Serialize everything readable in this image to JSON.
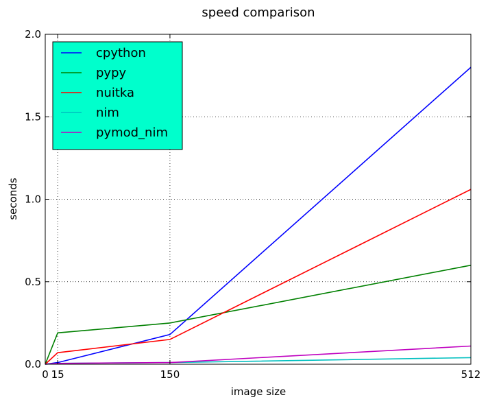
{
  "chart_data": {
    "type": "line",
    "title": "speed comparison",
    "xlabel": "image size",
    "ylabel": "seconds",
    "xlim": [
      0,
      512
    ],
    "ylim": [
      0.0,
      2.0
    ],
    "x": [
      0,
      15,
      150,
      512
    ],
    "xticks": [
      0,
      15,
      150,
      512
    ],
    "xtick_labels": [
      "0",
      "15",
      "150",
      "512"
    ],
    "yticks": [
      0.0,
      0.5,
      1.0,
      1.5,
      2.0
    ],
    "ytick_labels": [
      "0.0",
      "0.5",
      "1.0",
      "1.5",
      "2.0"
    ],
    "grid": true,
    "legend_position": "top-left",
    "legend_background": "#00ffcc",
    "series": [
      {
        "name": "cpython",
        "color": "#0000ff",
        "values": [
          0.0,
          0.01,
          0.18,
          1.8
        ]
      },
      {
        "name": "pypy",
        "color": "#008000",
        "values": [
          0.0,
          0.19,
          0.25,
          0.6
        ]
      },
      {
        "name": "nuitka",
        "color": "#ff0000",
        "values": [
          0.0,
          0.07,
          0.15,
          1.06
        ]
      },
      {
        "name": "nim",
        "color": "#00bfbf",
        "values": [
          0.0,
          0.005,
          0.01,
          0.04
        ]
      },
      {
        "name": "pymod_nim",
        "color": "#bf00bf",
        "values": [
          0.0,
          0.005,
          0.01,
          0.11
        ]
      }
    ]
  }
}
